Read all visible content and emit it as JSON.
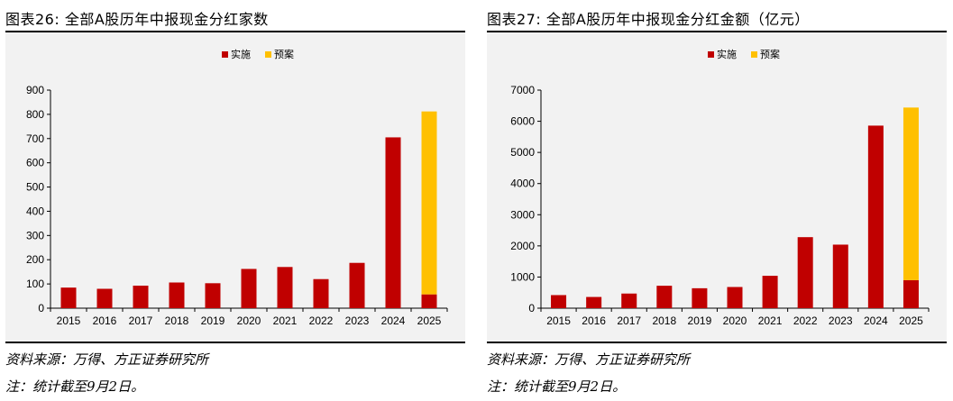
{
  "colors": {
    "series_impl": "#c00000",
    "series_plan": "#ffc000",
    "axis": "#000000"
  },
  "chart_data": [
    {
      "type": "bar",
      "stacked": true,
      "title": "图表26: 全部A股历年中报现金分红家数",
      "categories": [
        "2015",
        "2016",
        "2017",
        "2018",
        "2019",
        "2020",
        "2021",
        "2022",
        "2023",
        "2024",
        "2025"
      ],
      "series": [
        {
          "name": "实施",
          "color": "#c00000",
          "values": [
            85,
            80,
            93,
            106,
            103,
            162,
            170,
            120,
            187,
            705,
            57
          ]
        },
        {
          "name": "预案",
          "color": "#ffc000",
          "values": [
            0,
            0,
            0,
            0,
            0,
            0,
            0,
            0,
            0,
            0,
            755
          ]
        }
      ],
      "ylim": [
        0,
        900
      ],
      "yticks": [
        0,
        100,
        200,
        300,
        400,
        500,
        600,
        700,
        800,
        900
      ],
      "legend": "top-center",
      "source": "资料来源：万得、方正证券研究所",
      "note": "注：统计截至9月2日。"
    },
    {
      "type": "bar",
      "stacked": true,
      "title": "图表27: 全部A股历年中报现金分红金额（亿元）",
      "categories": [
        "2015",
        "2016",
        "2017",
        "2018",
        "2019",
        "2020",
        "2021",
        "2022",
        "2023",
        "2024",
        "2025"
      ],
      "series": [
        {
          "name": "实施",
          "color": "#c00000",
          "values": [
            420,
            360,
            470,
            720,
            640,
            680,
            1040,
            2280,
            2040,
            5860,
            900
          ]
        },
        {
          "name": "预案",
          "color": "#ffc000",
          "values": [
            0,
            0,
            0,
            0,
            0,
            0,
            0,
            0,
            0,
            0,
            5540
          ]
        }
      ],
      "ylim": [
        0,
        7000
      ],
      "yticks": [
        0,
        1000,
        2000,
        3000,
        4000,
        5000,
        6000,
        7000
      ],
      "legend": "top-center",
      "source": "资料来源：万得、方正证券研究所",
      "note": "注：统计截至9月2日。"
    }
  ]
}
